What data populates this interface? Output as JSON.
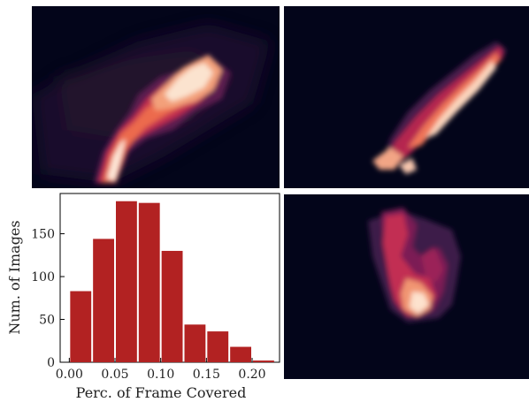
{
  "panels": [
    {
      "position": "top-left",
      "content": "heatmap"
    },
    {
      "position": "top-right",
      "content": "heatmap"
    },
    {
      "position": "bottom-right",
      "content": "heatmap"
    }
  ],
  "heatmap_colors": {
    "background": "#03051A",
    "low": "#35193E",
    "mid": "#A11A5B",
    "high": "#E83F3F",
    "peak": "#FAEBDD"
  },
  "chart_data": {
    "type": "bar",
    "xlabel": "Perc. of Frame Covered",
    "ylabel": "Num. of Images",
    "bar_color": "#B22222",
    "bin_width": 0.025,
    "bins": [
      {
        "start": 0.0,
        "value": 83
      },
      {
        "start": 0.025,
        "value": 144
      },
      {
        "start": 0.05,
        "value": 188
      },
      {
        "start": 0.075,
        "value": 186
      },
      {
        "start": 0.1,
        "value": 130
      },
      {
        "start": 0.125,
        "value": 44
      },
      {
        "start": 0.15,
        "value": 36
      },
      {
        "start": 0.175,
        "value": 18
      },
      {
        "start": 0.2,
        "value": 2
      }
    ],
    "xlim": [
      -0.01,
      0.23
    ],
    "ylim": [
      0,
      197
    ],
    "xticks": [
      {
        "value": 0.0,
        "label": "0.00"
      },
      {
        "value": 0.05,
        "label": "0.05"
      },
      {
        "value": 0.1,
        "label": "0.10"
      },
      {
        "value": 0.15,
        "label": "0.15"
      },
      {
        "value": 0.2,
        "label": "0.20"
      }
    ],
    "yticks": [
      {
        "value": 0,
        "label": "0"
      },
      {
        "value": 50,
        "label": "50"
      },
      {
        "value": 100,
        "label": "100"
      },
      {
        "value": 150,
        "label": "150"
      }
    ],
    "grid": false
  }
}
